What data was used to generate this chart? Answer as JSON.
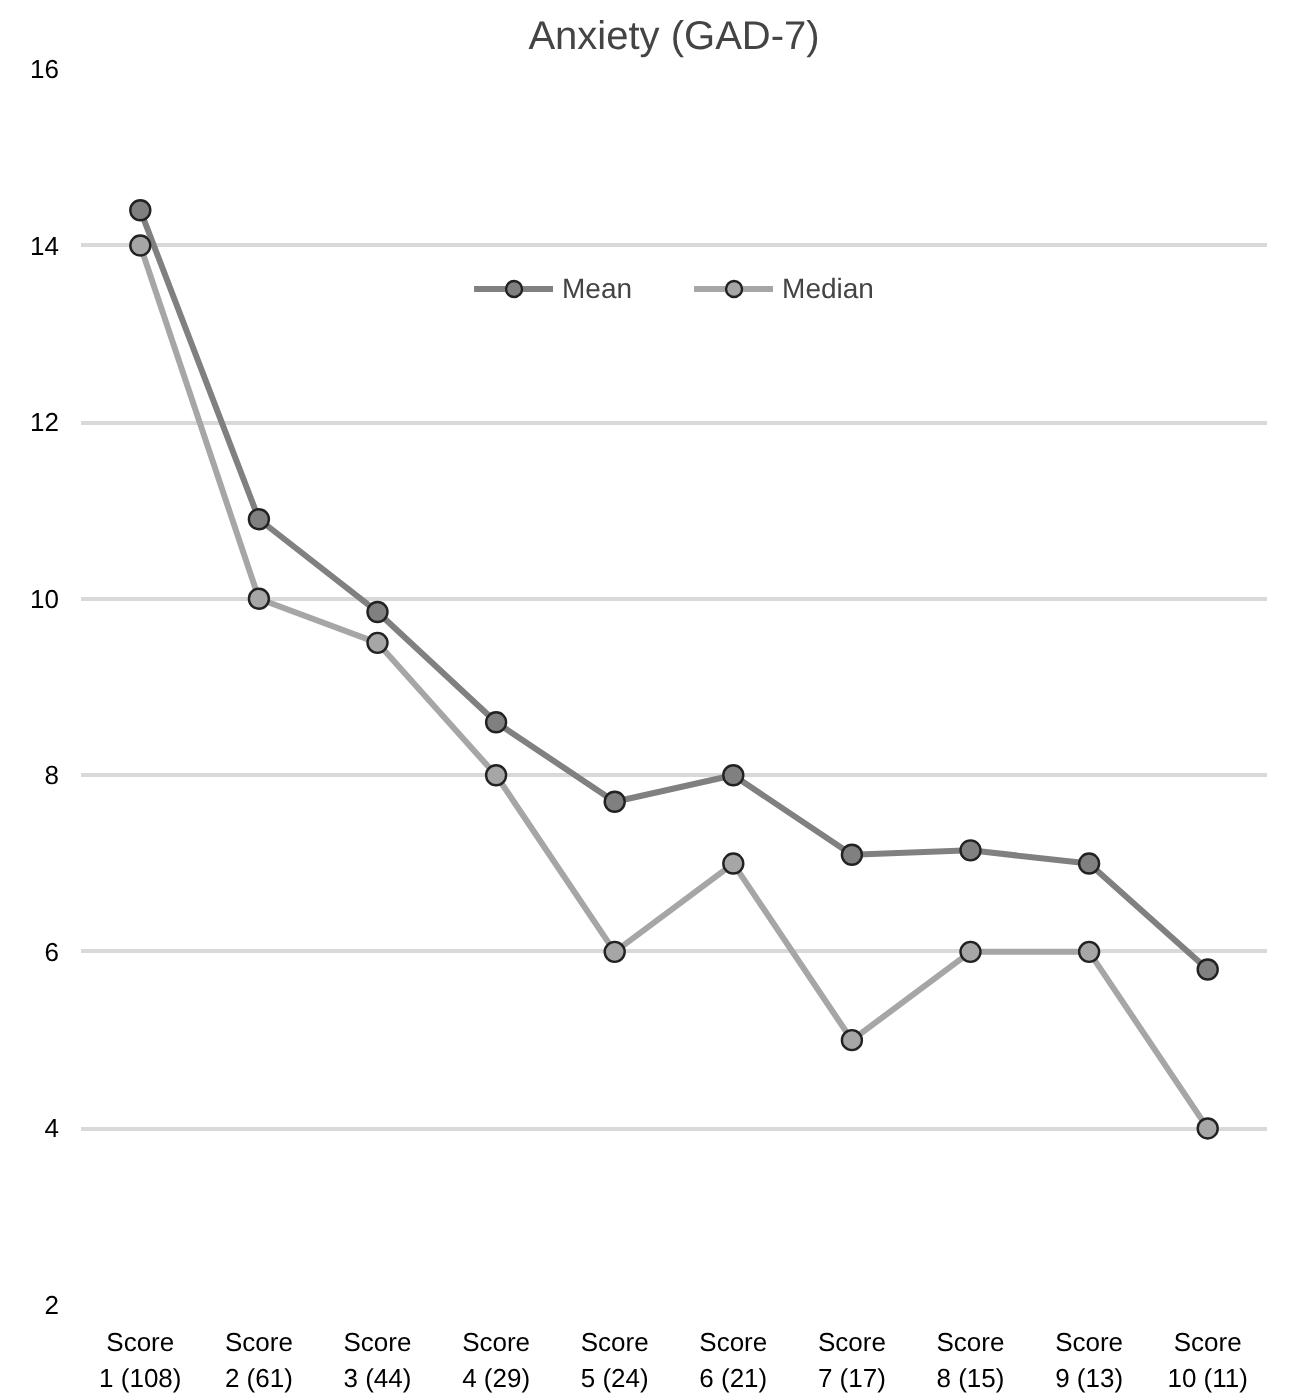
{
  "chart_data": {
    "type": "line",
    "title": "Anxiety (GAD-7)",
    "categories": [
      "Score\n1 (108)",
      "Score\n2 (61)",
      "Score\n3 (44)",
      "Score\n4 (29)",
      "Score\n5 (24)",
      "Score\n6 (21)",
      "Score\n7 (17)",
      "Score\n8 (15)",
      "Score\n9 (13)",
      "Score\n10 (11)"
    ],
    "series": [
      {
        "name": "Mean",
        "color": "#808080",
        "values": [
          14.4,
          10.9,
          9.85,
          8.6,
          7.7,
          8.0,
          7.1,
          7.15,
          7.0,
          5.8
        ]
      },
      {
        "name": "Median",
        "color": "#a6a6a6",
        "values": [
          14,
          10,
          9.5,
          8,
          6,
          7,
          5,
          6,
          6,
          4
        ]
      }
    ],
    "ylim": [
      2,
      16
    ],
    "yticks": [
      2,
      4,
      6,
      8,
      10,
      12,
      14,
      16
    ],
    "grid": "y",
    "legend": "top",
    "marker": "circle",
    "line_style": "solid"
  }
}
